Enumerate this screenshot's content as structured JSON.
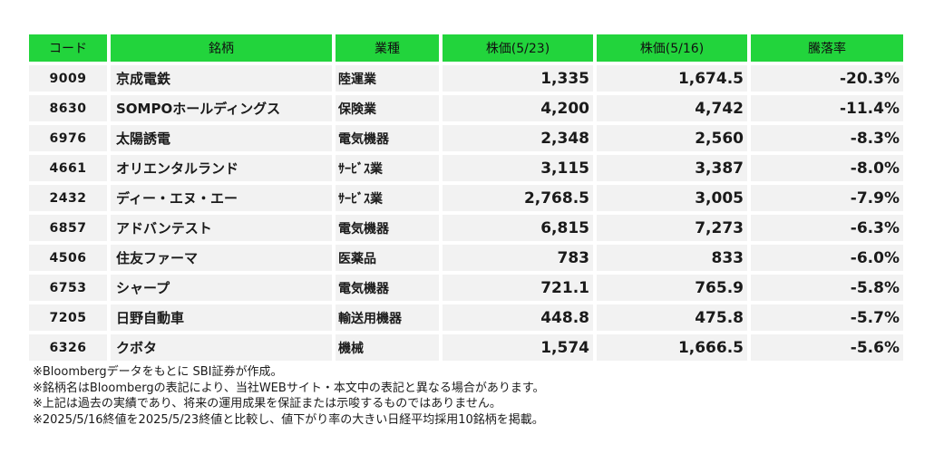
{
  "table": {
    "headers": {
      "code": "コード",
      "name": "銘柄",
      "industry": "業種",
      "price_523": "株価(5/23)",
      "price_516": "株価(5/16)",
      "change": "騰落率"
    },
    "rows": [
      {
        "code": "9009",
        "name": "京成電鉄",
        "industry": "陸運業",
        "price_523": "1,335",
        "price_516": "1,674.5",
        "change": "-20.3%"
      },
      {
        "code": "8630",
        "name": "SOMPOホールディングス",
        "industry": "保険業",
        "price_523": "4,200",
        "price_516": "4,742",
        "change": "-11.4%"
      },
      {
        "code": "6976",
        "name": "太陽誘電",
        "industry": "電気機器",
        "price_523": "2,348",
        "price_516": "2,560",
        "change": "-8.3%"
      },
      {
        "code": "4661",
        "name": "オリエンタルランド",
        "industry": "ｻｰﾋﾞｽ業",
        "price_523": "3,115",
        "price_516": "3,387",
        "change": "-8.0%"
      },
      {
        "code": "2432",
        "name": "ディー・エヌ・エー",
        "industry": "ｻｰﾋﾞｽ業",
        "price_523": "2,768.5",
        "price_516": "3,005",
        "change": "-7.9%"
      },
      {
        "code": "6857",
        "name": "アドバンテスト",
        "industry": "電気機器",
        "price_523": "6,815",
        "price_516": "7,273",
        "change": "-6.3%"
      },
      {
        "code": "4506",
        "name": "住友ファーマ",
        "industry": "医薬品",
        "price_523": "783",
        "price_516": "833",
        "change": "-6.0%"
      },
      {
        "code": "6753",
        "name": "シャープ",
        "industry": "電気機器",
        "price_523": "721.1",
        "price_516": "765.9",
        "change": "-5.8%"
      },
      {
        "code": "7205",
        "name": "日野自動車",
        "industry": "輸送用機器",
        "price_523": "448.8",
        "price_516": "475.8",
        "change": "-5.7%"
      },
      {
        "code": "6326",
        "name": "クボタ",
        "industry": "機械",
        "price_523": "1,574",
        "price_516": "1,666.5",
        "change": "-5.6%"
      }
    ]
  },
  "notes": [
    "※Bloombergデータをもとに SBI証券が作成。",
    "※銘柄名はBloombergの表記により、当社WEBサイト・本文中の表記と異なる場合があります。",
    "※上記は過去の実績であり、将来の運用成果を保証または示唆するものではありません。",
    "※2025/5/16終値を2025/5/23終値と比較し、値下がり率の大きい日経平均採用10銘柄を掲載。"
  ],
  "colors": {
    "header_bg": "#22d43c",
    "row_bg": "#f2f2f2"
  }
}
